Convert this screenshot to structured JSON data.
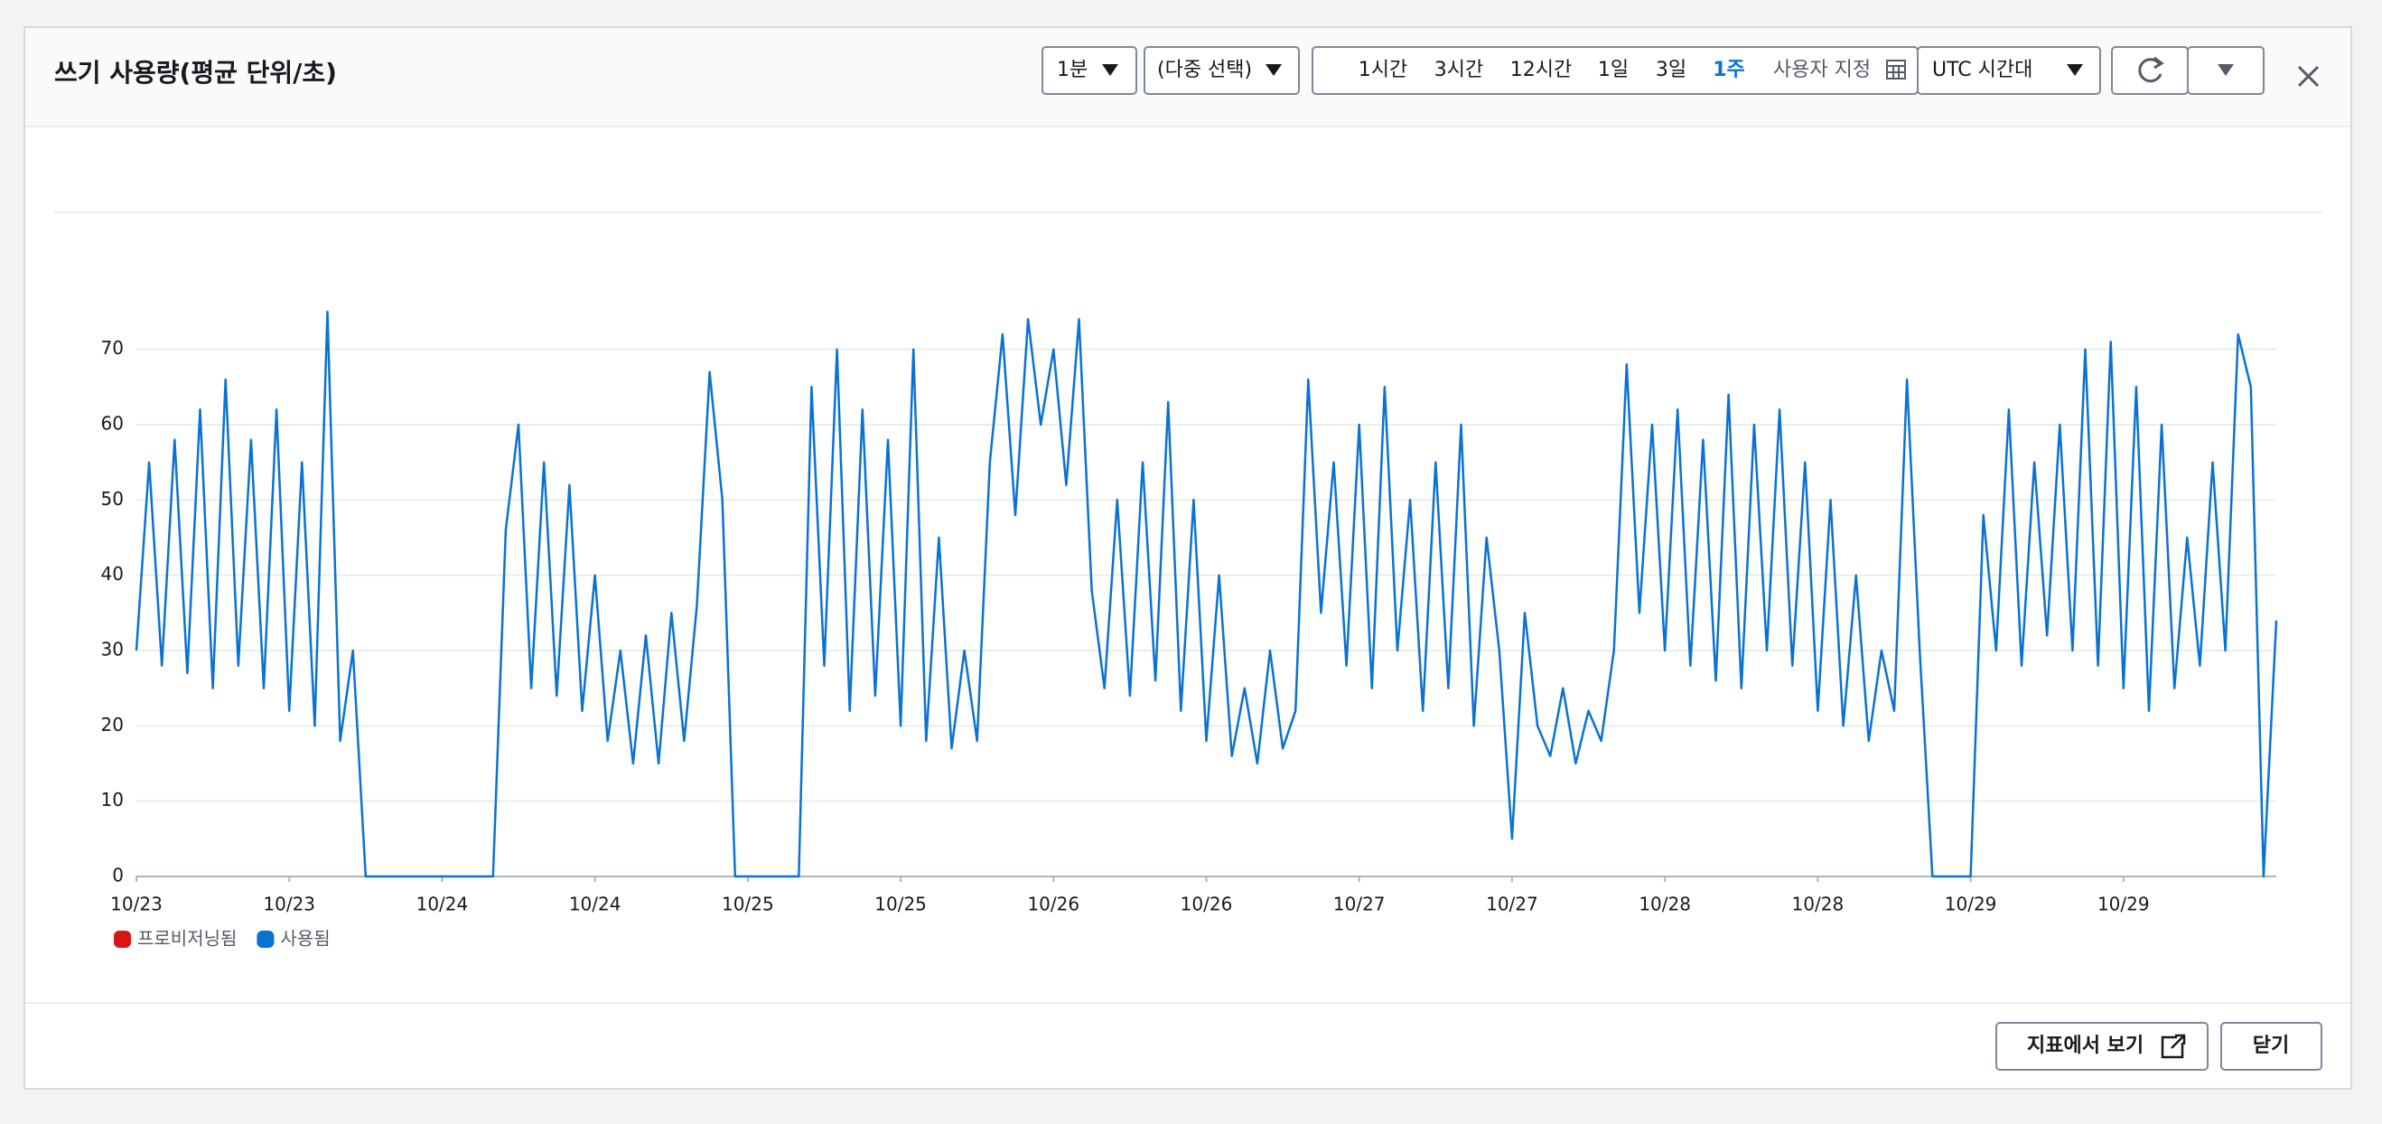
{
  "ui": {
    "title": "쓰기 사용량(평균 단위/초)",
    "period": "1분",
    "stat": "(다중 선택)",
    "ranges": [
      "1시간",
      "3시간",
      "12시간",
      "1일",
      "3일",
      "1주",
      "사용자 지정"
    ],
    "active_range": 5,
    "timezone": "UTC 시간대",
    "view_in_metrics": "지표에서 보기",
    "close": "닫기"
  },
  "chart_data": {
    "type": "line",
    "x": [
      0,
      1,
      2,
      3,
      4,
      5,
      6,
      7,
      8,
      9,
      10,
      11,
      12,
      13,
      14,
      15,
      16,
      17,
      18,
      19,
      20,
      21,
      22,
      23,
      24,
      25,
      26,
      27,
      28,
      29,
      30,
      31,
      32,
      33,
      34,
      35,
      36,
      37,
      38,
      39,
      40,
      41,
      42,
      43,
      44,
      45,
      46,
      47,
      48,
      49,
      50,
      51,
      52,
      53,
      54,
      55,
      56,
      57,
      58,
      59,
      60,
      61,
      62,
      63,
      64,
      65,
      66,
      67,
      68,
      69,
      70,
      71,
      72,
      73,
      74,
      75,
      76,
      77,
      78,
      79,
      80,
      81,
      82,
      83,
      84,
      85,
      86,
      87,
      88,
      89,
      90,
      91,
      92,
      93,
      94,
      95,
      96,
      97,
      98,
      99,
      100,
      101,
      102,
      103,
      104,
      105,
      106,
      107,
      108,
      109,
      110,
      111,
      112,
      113,
      114,
      115,
      116,
      117,
      118,
      119,
      120,
      121,
      122,
      123,
      124,
      125,
      126,
      127,
      128,
      129,
      130,
      131,
      132,
      133,
      134,
      135,
      136,
      137,
      138,
      139,
      140,
      141,
      142,
      143,
      144,
      145,
      146,
      147,
      148,
      149,
      150,
      151,
      152,
      153,
      154,
      155,
      156,
      157,
      158,
      159,
      160,
      161,
      162,
      163,
      164,
      165,
      166,
      167,
      168
    ],
    "series": [
      {
        "name": "사용됨",
        "color": "#0972d3",
        "values": [
          30,
          55,
          28,
          58,
          27,
          62,
          25,
          66,
          28,
          58,
          25,
          62,
          22,
          55,
          20,
          75,
          18,
          30,
          0,
          0,
          0,
          0,
          0,
          0,
          0,
          0,
          0,
          0,
          0,
          46,
          60,
          25,
          55,
          24,
          52,
          22,
          40,
          18,
          30,
          15,
          32,
          15,
          35,
          18,
          36,
          67,
          50,
          0,
          0,
          0,
          0,
          0,
          0,
          65,
          28,
          70,
          22,
          62,
          24,
          58,
          20,
          70,
          18,
          45,
          17,
          30,
          18,
          55,
          72,
          48,
          74,
          60,
          70,
          52,
          74,
          38,
          25,
          50,
          24,
          55,
          26,
          63,
          22,
          50,
          18,
          40,
          16,
          25,
          15,
          30,
          17,
          22,
          66,
          35,
          55,
          28,
          60,
          25,
          65,
          30,
          50,
          22,
          55,
          25,
          60,
          20,
          45,
          30,
          5,
          35,
          20,
          16,
          25,
          15,
          22,
          18,
          30,
          68,
          35,
          60,
          30,
          62,
          28,
          58,
          26,
          64,
          25,
          60,
          30,
          62,
          28,
          55,
          22,
          50,
          20,
          40,
          18,
          30,
          22,
          66,
          30,
          0,
          0,
          0,
          0,
          48,
          30,
          62,
          28,
          55,
          32,
          60,
          30,
          70,
          28,
          71,
          25,
          65,
          22,
          60,
          25,
          45,
          28,
          55,
          30,
          72,
          65,
          0,
          34
        ]
      }
    ],
    "legend": [
      {
        "name": "프로비저닝됨",
        "color": "#d91515"
      },
      {
        "name": "사용됨",
        "color": "#0972d3"
      }
    ],
    "xlim": [
      0,
      168
    ],
    "xticks": [
      {
        "value": 0,
        "label": "10/23"
      },
      {
        "value": 12,
        "label": "10/23"
      },
      {
        "value": 24,
        "label": "10/24"
      },
      {
        "value": 36,
        "label": "10/24"
      },
      {
        "value": 48,
        "label": "10/25"
      },
      {
        "value": 60,
        "label": "10/25"
      },
      {
        "value": 72,
        "label": "10/26"
      },
      {
        "value": 84,
        "label": "10/26"
      },
      {
        "value": 96,
        "label": "10/27"
      },
      {
        "value": 108,
        "label": "10/27"
      },
      {
        "value": 120,
        "label": "10/28"
      },
      {
        "value": 132,
        "label": "10/28"
      },
      {
        "value": 144,
        "label": "10/29"
      },
      {
        "value": 156,
        "label": "10/29"
      }
    ],
    "ylim": [
      0,
      75
    ],
    "yticks": [
      0,
      10,
      20,
      30,
      40,
      50,
      60,
      70
    ],
    "grid": true
  }
}
